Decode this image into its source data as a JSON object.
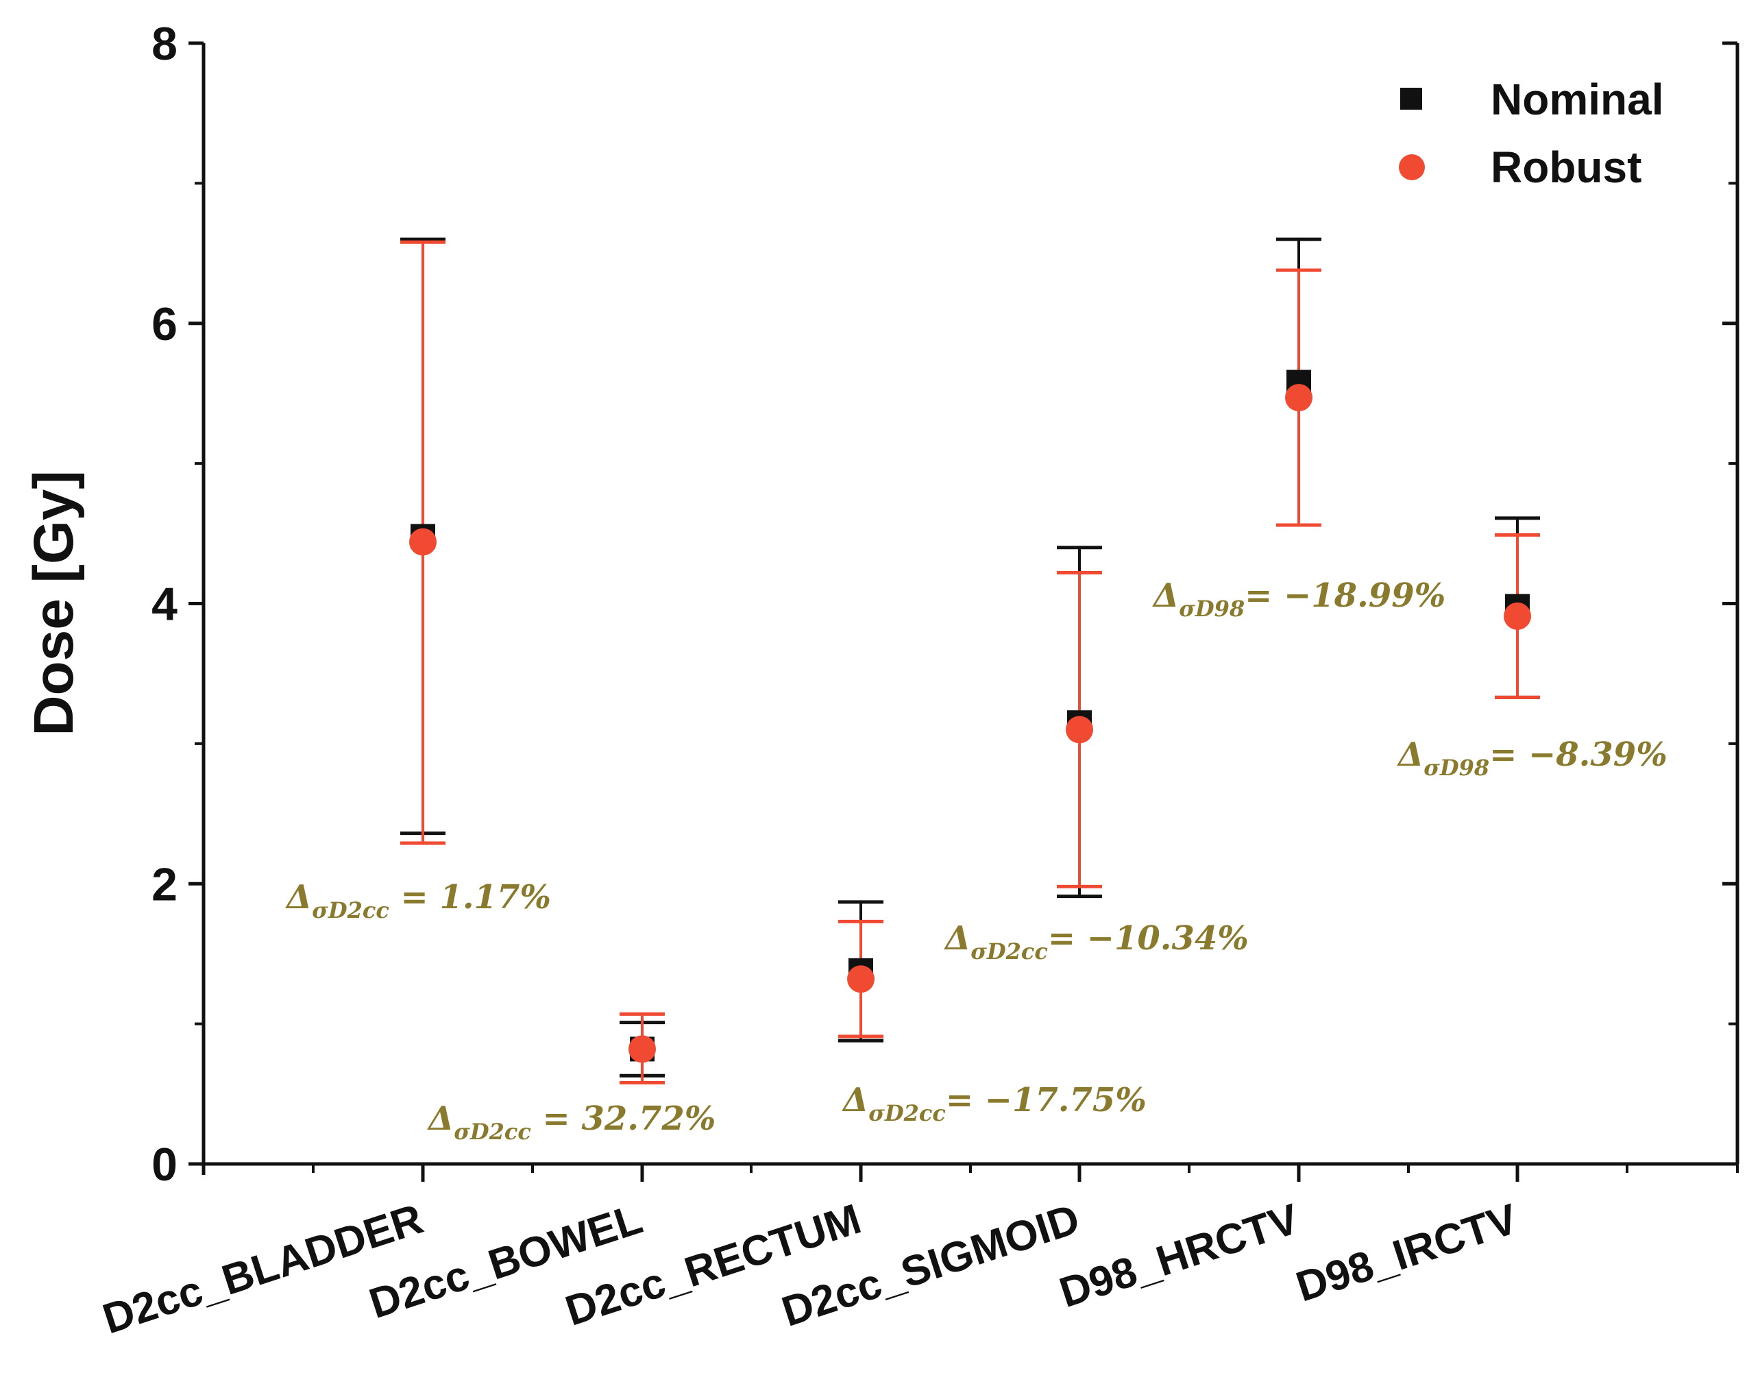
{
  "chart_data": {
    "type": "scatter",
    "title": "",
    "xlabel": "",
    "ylabel": "Dose [Gy]",
    "ylim": [
      0,
      8
    ],
    "yticks": [
      0,
      2,
      4,
      6,
      8
    ],
    "yticks_minor": [
      1,
      3,
      5,
      7
    ],
    "grid": false,
    "legend_position": "top-right",
    "categories": [
      "D2cc_BLADDER",
      "D2cc_BOWEL",
      "D2cc_RECTUM",
      "D2cc_SIGMOID",
      "D98_HRCTV",
      "D98_IRCTV"
    ],
    "series": [
      {
        "name": "Nominal",
        "marker": "square",
        "color": "#111111",
        "values": [
          4.48,
          0.82,
          1.38,
          3.15,
          5.58,
          3.98
        ],
        "error_low": [
          2.36,
          0.63,
          0.88,
          1.91,
          4.56,
          3.33
        ],
        "error_high": [
          6.6,
          1.01,
          1.87,
          4.4,
          6.6,
          4.61
        ]
      },
      {
        "name": "Robust",
        "marker": "circle",
        "color": "#f04a32",
        "values": [
          4.44,
          0.82,
          1.32,
          3.1,
          5.47,
          3.91
        ],
        "error_low": [
          2.29,
          0.58,
          0.91,
          1.98,
          4.56,
          3.33
        ],
        "error_high": [
          6.58,
          1.07,
          1.73,
          4.22,
          6.38,
          4.49
        ]
      }
    ],
    "annotations": [
      {
        "delta": "Δ",
        "subscript": "σD2cc",
        "eq": " = ",
        "value": "1.17%"
      },
      {
        "delta": "Δ",
        "subscript": "σD2cc",
        "eq": " = ",
        "value": "32.72%"
      },
      {
        "delta": "Δ",
        "subscript": "σD2cc",
        "eq": "= ",
        "value": "−17.75%"
      },
      {
        "delta": "Δ",
        "subscript": "σD2cc",
        "eq": "= ",
        "value": "−10.34%"
      },
      {
        "delta": "Δ",
        "subscript": "σD98",
        "eq": "= ",
        "value": "−18.99%"
      },
      {
        "delta": "Δ",
        "subscript": "σD98",
        "eq": "= ",
        "value": "−8.39%"
      }
    ],
    "annotation_color": "#8a7a2e"
  }
}
